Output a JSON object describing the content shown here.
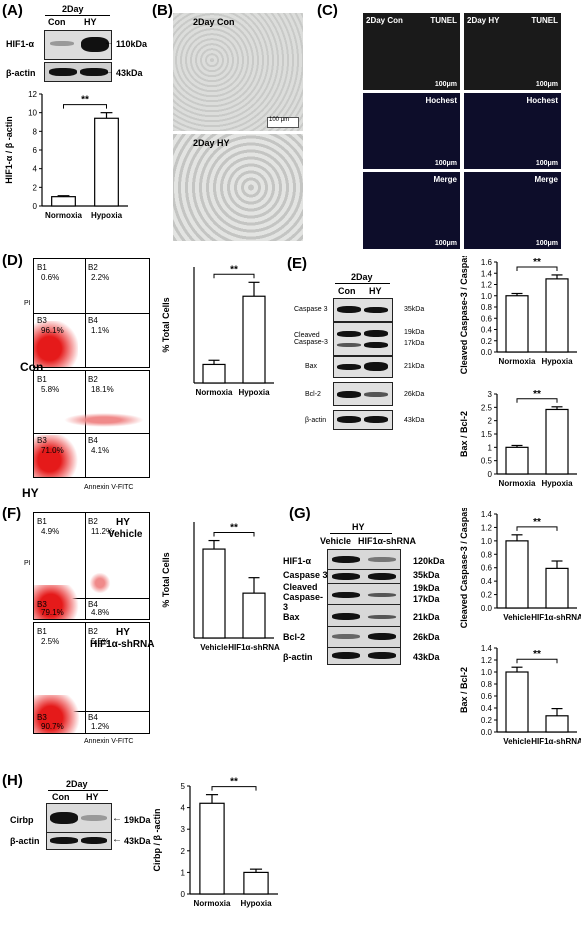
{
  "panels": {
    "A": {
      "label": "(A)",
      "timepoint": "2Day",
      "lanes": [
        "Con",
        "HY"
      ],
      "bands": [
        {
          "name": "HIF1-α",
          "kda": "110kDa"
        },
        {
          "name": "β-actin",
          "kda": "43kDa"
        }
      ],
      "sig": "**"
    },
    "B": {
      "label": "(B)",
      "images": [
        "2Day Con",
        "2Day HY"
      ],
      "scale": "100 μm"
    },
    "C": {
      "label": "(C)",
      "columns": [
        "2Day Con",
        "2Day HY"
      ],
      "rows": [
        "TUNEL",
        "Hochest",
        "Merge"
      ],
      "scale": "100μm"
    },
    "D": {
      "label": "(D)",
      "xaxis": "Annexin V-FITC",
      "yaxis": "PI",
      "quadrants": [
        "B1",
        "B2",
        "B3",
        "B4"
      ],
      "plots": [
        {
          "name": "Con",
          "B1": "0.6%",
          "B2": "2.2%",
          "B3": "96.1%",
          "B4": "1.1%"
        },
        {
          "name": "HY",
          "B1": "5.8%",
          "B2": "18.1%",
          "B3": "71.0%",
          "B4": "4.1%"
        }
      ],
      "sig": "**"
    },
    "E": {
      "label": "(E)",
      "timepoint": "2Day",
      "lanes": [
        "Con",
        "HY"
      ],
      "bands": [
        {
          "name": "Caspase 3",
          "kda": "35kDa"
        },
        {
          "name": "Cleaved Caspase-3",
          "kda1": "19kDa",
          "kda2": "17kDa"
        },
        {
          "name": "Bax",
          "kda": "21kDa"
        },
        {
          "name": "Bcl-2",
          "kda": "26kDa"
        },
        {
          "name": "β-actin",
          "kda": "43kDa"
        }
      ],
      "sig": "**"
    },
    "F": {
      "label": "(F)",
      "xaxis": "Annexin V-FITC",
      "yaxis": "PI",
      "plots": [
        {
          "name": "HY Vehicle",
          "line1": "HY",
          "line2": "Vehicle",
          "B1": "4.9%",
          "B2": "11.2%",
          "B3": "79.1%",
          "B4": "4.8%"
        },
        {
          "name": "HY HIF1α-shRNA",
          "line1": "HY",
          "line2": "HIF1α-shRNA",
          "B1": "2.5%",
          "B2": "5.5%",
          "B3": "90.7%",
          "B4": "1.2%"
        }
      ],
      "sig": "**"
    },
    "G": {
      "label": "(G)",
      "group": "HY",
      "lanes": [
        "Vehicle",
        "HIF1α-shRNA"
      ],
      "bands": [
        {
          "name": "HIF1-α",
          "kda": "120kDa"
        },
        {
          "name": "Caspase 3",
          "kda": "35kDa"
        },
        {
          "name": "Cleaved Caspase-3",
          "kda1": "19kDa",
          "kda2": "17kDa"
        },
        {
          "name": "Bax",
          "kda": "21kDa"
        },
        {
          "name": "Bcl-2",
          "kda": "26kDa"
        },
        {
          "name": "β-actin",
          "kda": "43kDa"
        }
      ],
      "sig": "**"
    },
    "H": {
      "label": "(H)",
      "timepoint": "2Day",
      "lanes": [
        "Con",
        "HY"
      ],
      "bands": [
        {
          "name": "Cirbp",
          "kda": "19kDa"
        },
        {
          "name": "β-actin",
          "kda": "43kDa"
        }
      ],
      "sig": "**"
    }
  },
  "chart_data": [
    {
      "id": "A",
      "type": "bar",
      "categories": [
        "Normoxia",
        "Hypoxia"
      ],
      "values": [
        1.0,
        9.4
      ],
      "errors": [
        0.1,
        0.6
      ],
      "ylabel": "HIF1-α / β -actin",
      "ylim": [
        0,
        12
      ],
      "yticks": [
        0,
        2,
        4,
        6,
        8,
        10,
        12
      ]
    },
    {
      "id": "D",
      "type": "bar",
      "categories": [
        "Normoxia",
        "Hypoxia"
      ],
      "values": [
        4,
        18.7
      ],
      "errors": [
        0.9,
        3
      ],
      "ylabel": "% Total Cells",
      "ylim": [
        0,
        25
      ],
      "yticks": []
    },
    {
      "id": "E1",
      "type": "bar",
      "categories": [
        "Normoxia",
        "Hypoxia"
      ],
      "values": [
        1.0,
        1.3
      ],
      "errors": [
        0.04,
        0.07
      ],
      "ylabel": "Cleaved Caspase-3 / Caspase-3",
      "ylim": [
        0,
        1.6
      ],
      "yticks": [
        0,
        0.2,
        0.4,
        0.6,
        0.8,
        1.0,
        1.2,
        1.4,
        1.6
      ]
    },
    {
      "id": "E2",
      "type": "bar",
      "categories": [
        "Normoxia",
        "Hypoxia"
      ],
      "values": [
        1.0,
        2.42
      ],
      "errors": [
        0.07,
        0.1
      ],
      "ylabel": "Bax / Bcl-2",
      "ylim": [
        0,
        3.0
      ],
      "yticks": [
        0,
        0.5,
        1.0,
        1.5,
        2.0,
        2.5,
        3.0
      ]
    },
    {
      "id": "F",
      "type": "bar",
      "categories": [
        "Vehicle",
        "HIF1α-shRNA"
      ],
      "values": [
        11.5,
        5.8
      ],
      "errors": [
        1.1,
        2
      ],
      "ylabel": "% Total Cells",
      "ylim": [
        0,
        15
      ],
      "yticks": []
    },
    {
      "id": "G1",
      "type": "bar",
      "categories": [
        "Vehicle",
        "HIF1α-shRNA"
      ],
      "values": [
        1.0,
        0.59
      ],
      "errors": [
        0.09,
        0.11
      ],
      "ylabel": "Cleaved Caspase-3 / Caspase-3",
      "ylim": [
        0,
        1.4
      ],
      "yticks": [
        0,
        0.2,
        0.4,
        0.6,
        0.8,
        1.0,
        1.2,
        1.4
      ]
    },
    {
      "id": "G2",
      "type": "bar",
      "categories": [
        "Vehicle",
        "HIF1α-shRNA"
      ],
      "values": [
        1.0,
        0.27
      ],
      "errors": [
        0.08,
        0.12
      ],
      "ylabel": "Bax / Bcl-2",
      "ylim": [
        0,
        1.4
      ],
      "yticks": [
        0,
        0.2,
        0.4,
        0.6,
        0.8,
        1.0,
        1.2,
        1.4
      ]
    },
    {
      "id": "H",
      "type": "bar",
      "categories": [
        "Normoxia",
        "Hypoxia"
      ],
      "values": [
        4.2,
        1.0
      ],
      "errors": [
        0.4,
        0.15
      ],
      "ylabel": "Cirbp / β -actin",
      "ylim": [
        0,
        5
      ],
      "yticks": [
        0,
        1,
        2,
        3,
        4,
        5
      ]
    }
  ]
}
